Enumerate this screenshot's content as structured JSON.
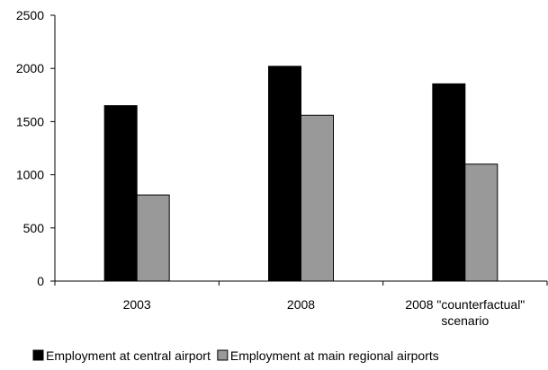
{
  "chart_data": {
    "type": "bar",
    "title": "",
    "xlabel": "",
    "ylabel": "",
    "categories": [
      [
        "2003"
      ],
      [
        "2008"
      ],
      [
        "2008 \"counterfactual\"",
        "scenario"
      ]
    ],
    "series": [
      {
        "name": "Employment at central airport",
        "color": "#000000",
        "values": [
          1650,
          2020,
          1855
        ]
      },
      {
        "name": "Employment at main regional airports",
        "color": "#999999",
        "values": [
          810,
          1560,
          1100
        ]
      }
    ],
    "ylim": [
      0,
      2500
    ],
    "yticks": [
      "0",
      "500",
      "1000",
      "1500",
      "2000",
      "2500"
    ],
    "ytick_values": [
      0,
      500,
      1000,
      1500,
      2000,
      2500
    ],
    "grid": false,
    "legend_position": "bottom"
  }
}
